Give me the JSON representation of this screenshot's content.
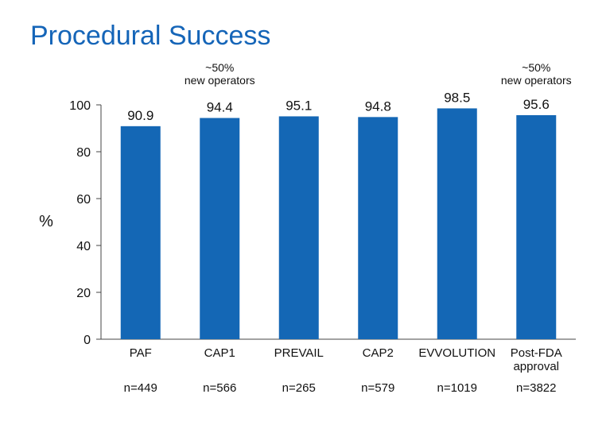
{
  "chart_data": {
    "type": "bar",
    "title": "Procedural Success",
    "ylabel": "%",
    "xlabel": "",
    "ylim": [
      0,
      100
    ],
    "yticks": [
      0,
      20,
      40,
      60,
      80,
      100
    ],
    "grid": false,
    "bar_color": "#1467b5",
    "title_color": "#1565b8",
    "categories": [
      "PAF",
      "CAP1",
      "PREVAIL",
      "CAP2",
      "EVVOLUTION",
      "Post-FDA approval"
    ],
    "category_lines": [
      [
        "PAF"
      ],
      [
        "CAP1"
      ],
      [
        "PREVAIL"
      ],
      [
        "CAP2"
      ],
      [
        "EVVOLUTION"
      ],
      [
        "Post-FDA",
        "approval"
      ]
    ],
    "values": [
      90.9,
      94.4,
      95.1,
      94.8,
      98.5,
      95.6
    ],
    "value_labels": [
      "90.9",
      "94.4",
      "95.1",
      "94.8",
      "98.5",
      "95.6"
    ],
    "sample_sizes": [
      "n=449",
      "n=566",
      "n=265",
      "n=579",
      "n=1019",
      "n=3822"
    ],
    "annotations": [
      {
        "category_index": 1,
        "lines": [
          "~50%",
          "new operators"
        ]
      },
      {
        "category_index": 5,
        "lines": [
          "~50%",
          "new operators"
        ]
      }
    ]
  }
}
